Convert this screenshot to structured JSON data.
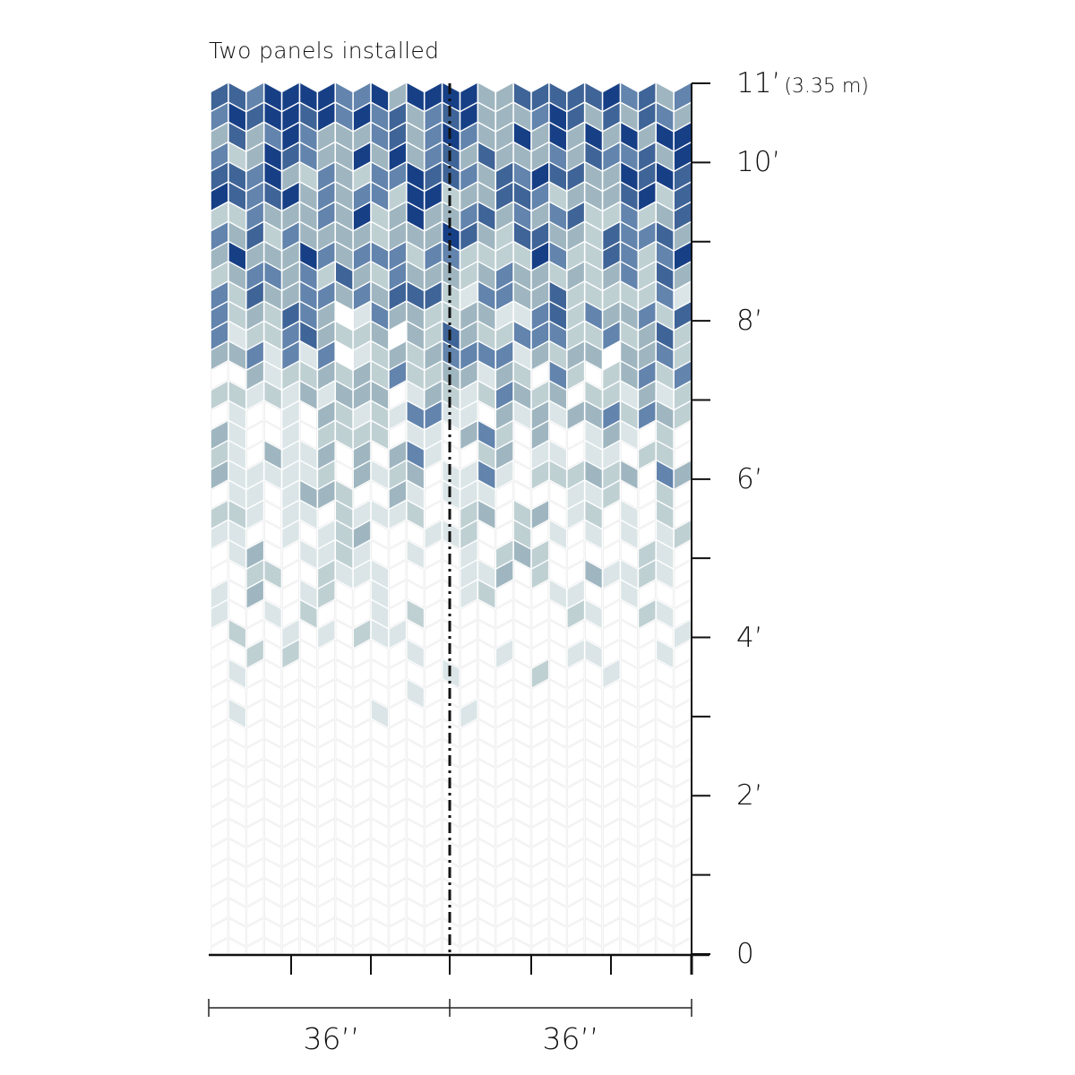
{
  "title": "Two panels installed",
  "height_labels": [
    {
      "feet": 0,
      "label": "0"
    },
    {
      "feet": 2,
      "label": "2’"
    },
    {
      "feet": 4,
      "label": "4’"
    },
    {
      "feet": 6,
      "label": "6’"
    },
    {
      "feet": 8,
      "label": "8’"
    },
    {
      "feet": 10,
      "label": "10’"
    },
    {
      "feet": 11,
      "label": "11’",
      "metric": "(3.35 m)"
    }
  ],
  "panel_widths": [
    {
      "label": "36’’"
    },
    {
      "label": "36’’"
    }
  ],
  "pattern": {
    "name": "chevron-gradient",
    "colors": [
      "#173f86",
      "#3f6497",
      "#6284ad",
      "#9fb6c0",
      "#bfd0d3",
      "#dbe5e7"
    ],
    "faint_outline": "#efefef"
  }
}
